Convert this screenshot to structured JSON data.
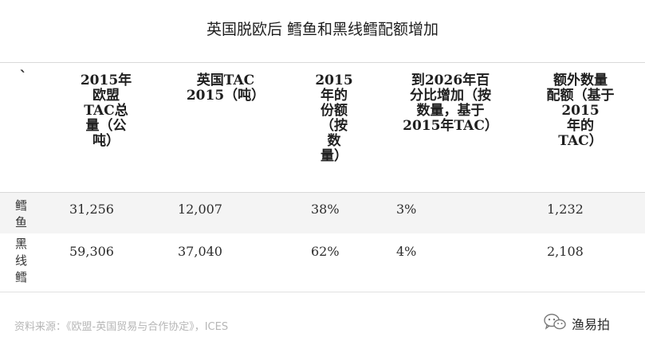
{
  "title": "英国脱欧后  鳕鱼和黑线鳕配额增加",
  "table": {
    "corner_mark": "`",
    "headers": [
      "2015年\n欧盟\nTAC总\n量（公\n吨）",
      "英国TAC\n2015（吨）",
      "2015\n年的\n份额\n（按\n数\n量）",
      "到2026年百\n分比增加（按\n数量，基于\n2015年TAC）",
      "额外数量\n配额（基于\n2015\n年的\nTAC）"
    ],
    "rows": [
      {
        "label": "鳕\n鱼",
        "cells": [
          "31,256",
          "12,007",
          "38%",
          "3%",
          "1,232"
        ]
      },
      {
        "label": "黑\n线\n鳕",
        "cells": [
          "59,306",
          "37,040",
          "62%",
          "4%",
          "2,108"
        ]
      }
    ]
  },
  "source": "资料来源：《欧盟-英国贸易与合作协定》，ICES",
  "brand": {
    "name": "渔易拍",
    "icon": "wechat-icon"
  }
}
